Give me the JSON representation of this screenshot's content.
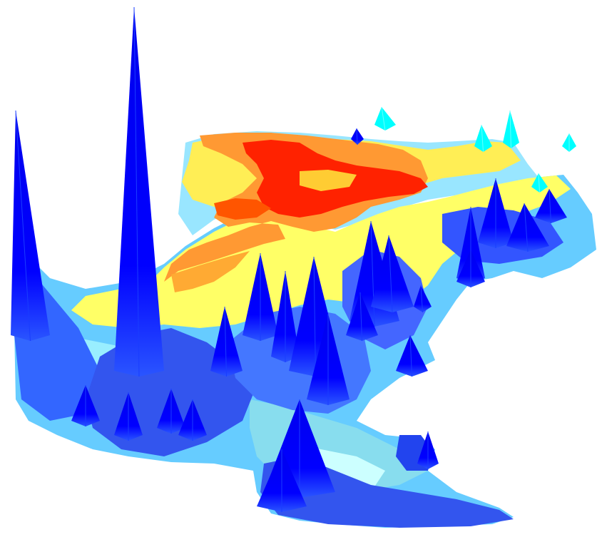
{
  "chart_data": {
    "type": "surface",
    "title": "",
    "xlabel": "",
    "ylabel": "",
    "zlabel": "",
    "axes_visible": false,
    "grid": false,
    "legend": "none",
    "colormap": {
      "name": "jet",
      "low": "#0000ff",
      "mid_low": "#00ffff",
      "mid": "#ffff00",
      "mid_high": "#ff8000",
      "high": "#ff0000"
    },
    "shading": "faceted",
    "background": "#ffffff"
  }
}
